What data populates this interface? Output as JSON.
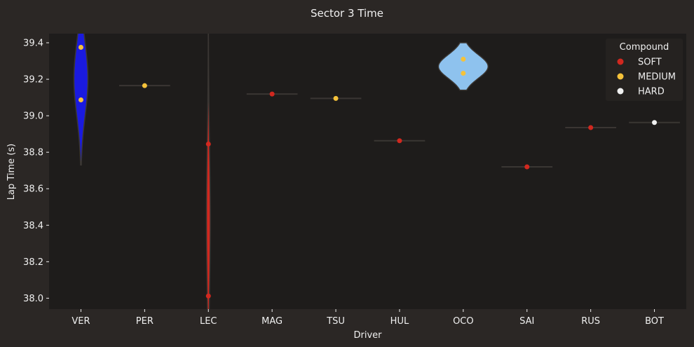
{
  "colors": {
    "figure_bg": "#2b2725",
    "axes_bg": "#1e1c1b",
    "text": "#f0f0f0",
    "soft": "#d1281f",
    "medium": "#f5c23a",
    "hard": "#f0f0f0"
  },
  "chart_data": {
    "type": "violin-strip",
    "title": "Sector 3 Time",
    "xlabel": "Driver",
    "ylabel": "Lap Time (s)",
    "ylim": [
      37.94,
      39.45
    ],
    "yticks": [
      "38.0",
      "38.2",
      "38.4",
      "38.6",
      "38.8",
      "39.0",
      "39.2",
      "39.4"
    ],
    "ytick_values": [
      38.0,
      38.2,
      38.4,
      38.6,
      38.8,
      39.0,
      39.2,
      39.4
    ],
    "categories": [
      "VER",
      "PER",
      "LEC",
      "MAG",
      "TSU",
      "HUL",
      "OCO",
      "SAI",
      "RUS",
      "BOT"
    ],
    "grid": false,
    "legend": {
      "title": "Compound",
      "position": "top-right",
      "entries": [
        {
          "label": "SOFT",
          "color": "#d1281f"
        },
        {
          "label": "MEDIUM",
          "color": "#f5c23a"
        },
        {
          "label": "HARD",
          "color": "#f0f0f0"
        }
      ]
    },
    "violins": [
      {
        "driver": "VER",
        "color": "#1a1adf",
        "min": 38.73,
        "max": 39.52,
        "center": 39.2,
        "half_width_cat": 0.11
      },
      {
        "driver": "PER",
        "color": "#f5c23a",
        "min": 39.163,
        "max": 39.167,
        "center": 39.165,
        "half_width_cat": 0.4
      },
      {
        "driver": "LEC",
        "color": "#d1281f",
        "min": 37.9,
        "max": 39.5,
        "center": 38.43,
        "half_width_cat": 0.03
      },
      {
        "driver": "MAG",
        "color": "#d1281f",
        "min": 39.117,
        "max": 39.121,
        "center": 39.119,
        "half_width_cat": 0.4
      },
      {
        "driver": "TSU",
        "color": "#f5c23a",
        "min": 39.093,
        "max": 39.097,
        "center": 39.095,
        "half_width_cat": 0.4
      },
      {
        "driver": "HUL",
        "color": "#d1281f",
        "min": 38.861,
        "max": 38.865,
        "center": 38.863,
        "half_width_cat": 0.4
      },
      {
        "driver": "OCO",
        "color": "#8ec2ee",
        "min": 39.14,
        "max": 39.4,
        "center": 39.27,
        "half_width_cat": 0.39
      },
      {
        "driver": "SAI",
        "color": "#d1281f",
        "min": 38.718,
        "max": 38.722,
        "center": 38.72,
        "half_width_cat": 0.4
      },
      {
        "driver": "RUS",
        "color": "#d1281f",
        "min": 38.933,
        "max": 38.937,
        "center": 38.935,
        "half_width_cat": 0.4
      },
      {
        "driver": "BOT",
        "color": "#f0f0f0",
        "min": 38.961,
        "max": 38.965,
        "center": 38.963,
        "half_width_cat": 0.4
      }
    ],
    "points": [
      {
        "driver": "VER",
        "time": 39.375,
        "compound": "MEDIUM"
      },
      {
        "driver": "VER",
        "time": 39.087,
        "compound": "MEDIUM"
      },
      {
        "driver": "PER",
        "time": 39.165,
        "compound": "MEDIUM"
      },
      {
        "driver": "LEC",
        "time": 38.845,
        "compound": "SOFT"
      },
      {
        "driver": "LEC",
        "time": 38.012,
        "compound": "SOFT"
      },
      {
        "driver": "MAG",
        "time": 39.119,
        "compound": "SOFT"
      },
      {
        "driver": "TSU",
        "time": 39.095,
        "compound": "MEDIUM"
      },
      {
        "driver": "HUL",
        "time": 38.863,
        "compound": "SOFT"
      },
      {
        "driver": "OCO",
        "time": 39.31,
        "compound": "MEDIUM"
      },
      {
        "driver": "OCO",
        "time": 39.233,
        "compound": "MEDIUM"
      },
      {
        "driver": "SAI",
        "time": 38.72,
        "compound": "SOFT"
      },
      {
        "driver": "RUS",
        "time": 38.935,
        "compound": "SOFT"
      },
      {
        "driver": "BOT",
        "time": 38.963,
        "compound": "HARD"
      }
    ]
  }
}
